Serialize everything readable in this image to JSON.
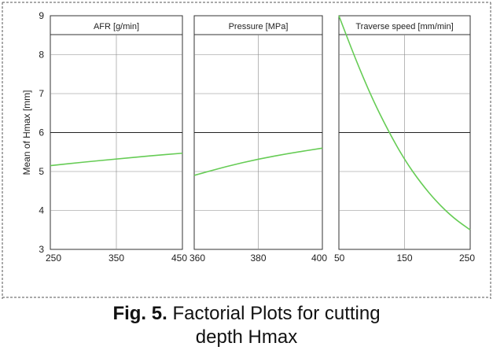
{
  "caption": {
    "label": "Fig. 5.",
    "text": "Factorial Plots for cutting",
    "text_line2": "depth Hmax"
  },
  "chart_data": {
    "type": "line",
    "ylabel": "Mean of Hmax [mm]",
    "ylim": [
      3,
      9
    ],
    "yticks": [
      "3",
      "4",
      "5",
      "6",
      "7",
      "8",
      "9"
    ],
    "grid": true,
    "series_color": "#66cc55",
    "panels": [
      {
        "title": "AFR  [g/min]",
        "xlim": [
          250,
          450
        ],
        "xticks": [
          "250",
          "350",
          "450"
        ],
        "series": [
          {
            "x": [
              250,
              300,
              350,
              400,
              450
            ],
            "y": [
              5.15,
              5.24,
              5.32,
              5.4,
              5.47
            ]
          }
        ]
      },
      {
        "title": "Pressure  [MPa]",
        "xlim": [
          360,
          400
        ],
        "xticks": [
          "360",
          "380",
          "400"
        ],
        "series": [
          {
            "x": [
              360,
              370,
              380,
              390,
              400
            ],
            "y": [
              4.9,
              5.13,
              5.32,
              5.47,
              5.6
            ]
          }
        ]
      },
      {
        "title": "Traverse speed  [mm/min]",
        "xlim": [
          50,
          250
        ],
        "xticks": [
          "50",
          "150",
          "250"
        ],
        "series": [
          {
            "x": [
              50,
              75,
              100,
              125,
              150,
              175,
              200,
              225,
              250
            ],
            "y": [
              9.0,
              7.9,
              6.9,
              6.05,
              5.3,
              4.7,
              4.2,
              3.8,
              3.5
            ]
          }
        ]
      }
    ]
  }
}
